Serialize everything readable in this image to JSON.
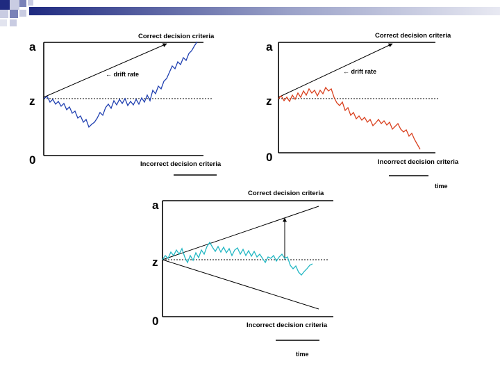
{
  "colors": {
    "deco_dark": "#1f2a80",
    "deco_mid": "#7a82b8",
    "deco_light": "#c9cce2",
    "panel1_walk": "#1f3fb0",
    "panel2_walk": "#d9401e",
    "panel3_walk": "#22b7c3",
    "ink": "#000000"
  },
  "panels": [
    {
      "id": "top-left",
      "upper_label": "a",
      "start_label": "z",
      "zero_label": "0",
      "correct_label": "Correct decision criteria",
      "incorrect_label": "Incorrect decision criteria",
      "drift_label": "← drift rate",
      "time_label": ""
    },
    {
      "id": "top-right",
      "upper_label": "a",
      "start_label": "z",
      "zero_label": "0",
      "correct_label": "Correct decision criteria",
      "incorrect_label": "Incorrect decision criteria",
      "drift_label": "← drift rate",
      "time_label": "time"
    },
    {
      "id": "bottom",
      "upper_label": "a",
      "start_label": "z",
      "zero_label": "0",
      "correct_label": "Correct decision criteria",
      "incorrect_label": "Incorrect decision criteria",
      "drift_label": "",
      "time_label": "time"
    }
  ]
}
